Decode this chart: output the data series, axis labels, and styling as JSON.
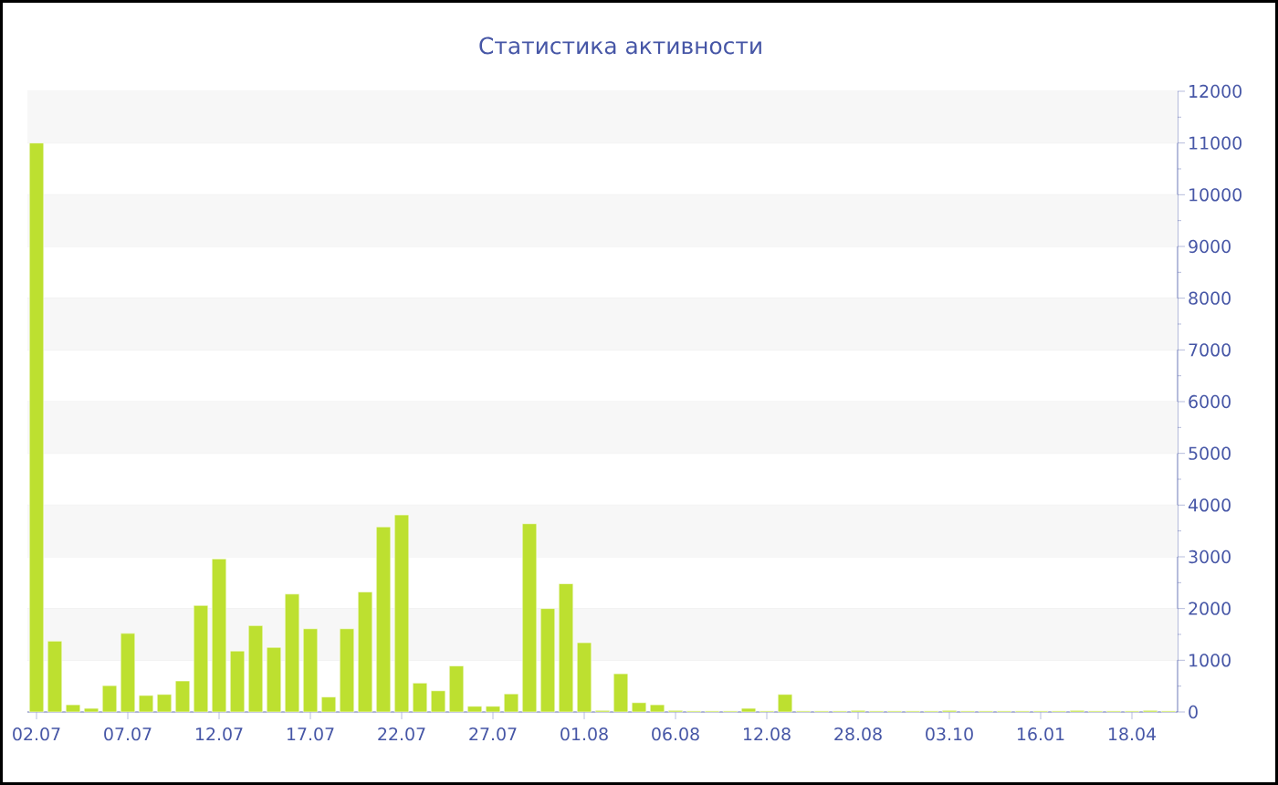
{
  "chart_data": {
    "type": "bar",
    "title": "Статистика активности",
    "categories": [
      "02.07",
      null,
      null,
      null,
      null,
      "07.07",
      null,
      null,
      null,
      null,
      "12.07",
      null,
      null,
      null,
      null,
      "17.07",
      null,
      null,
      null,
      null,
      "22.07",
      null,
      null,
      null,
      null,
      "27.07",
      null,
      null,
      null,
      null,
      "01.08",
      null,
      null,
      null,
      null,
      "06.08",
      null,
      null,
      null,
      null,
      "12.08",
      null,
      null,
      null,
      null,
      "28.08",
      null,
      null,
      null,
      null,
      "03.10",
      null,
      null,
      null,
      null,
      "16.01",
      null,
      null,
      null,
      null,
      "18.04",
      null,
      null
    ],
    "values": [
      11000,
      1370,
      140,
      70,
      510,
      1520,
      320,
      340,
      600,
      2060,
      2960,
      1180,
      1670,
      1250,
      2280,
      1610,
      290,
      1610,
      2320,
      3580,
      3810,
      560,
      410,
      890,
      110,
      110,
      350,
      3640,
      2000,
      2480,
      1340,
      30,
      740,
      180,
      140,
      30,
      20,
      20,
      20,
      70,
      20,
      340,
      20,
      20,
      20,
      30,
      20,
      20,
      20,
      20,
      30,
      20,
      20,
      20,
      20,
      20,
      20,
      30,
      20,
      20,
      20,
      30,
      20
    ],
    "color": "#bde030",
    "ylim": [
      0,
      12000
    ],
    "yticks": [
      0,
      1000,
      2000,
      3000,
      4000,
      5000,
      6000,
      7000,
      8000,
      9000,
      10000,
      11000,
      12000
    ],
    "grid": true
  }
}
